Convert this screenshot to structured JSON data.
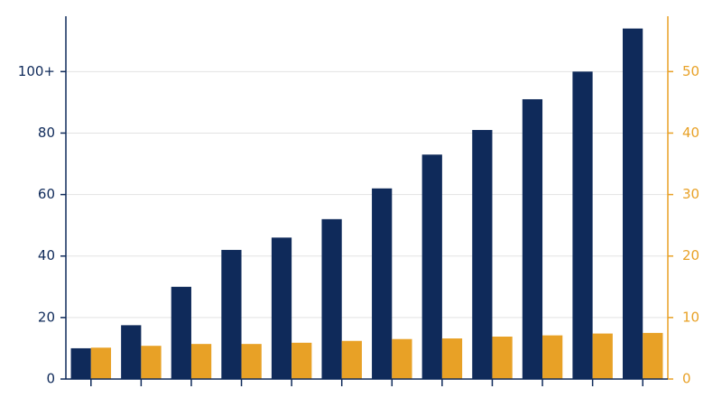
{
  "chart_data": {
    "type": "bar",
    "categories": [
      null,
      null,
      null,
      null,
      null,
      null,
      null,
      null,
      null,
      null,
      null,
      null
    ],
    "series": [
      {
        "color": "#0f2a5a",
        "values": [
          10,
          17.5,
          30,
          42,
          46,
          52,
          62,
          73,
          81,
          91,
          100,
          114
        ]
      },
      {
        "color": "#e8a126",
        "axis": "y2",
        "values": [
          5.1,
          5.4,
          5.7,
          5.7,
          5.9,
          6.2,
          6.5,
          6.6,
          6.9,
          7.1,
          7.4,
          7.5
        ]
      }
    ],
    "ylim": [
      0,
      118
    ],
    "yticks": [
      0,
      20,
      40,
      60,
      80,
      {
        "value": 100,
        "label": "100+"
      }
    ],
    "y2lim": [
      0,
      59
    ],
    "y2ticks": [
      0,
      10,
      20,
      30,
      40,
      50
    ],
    "grid": true
  }
}
